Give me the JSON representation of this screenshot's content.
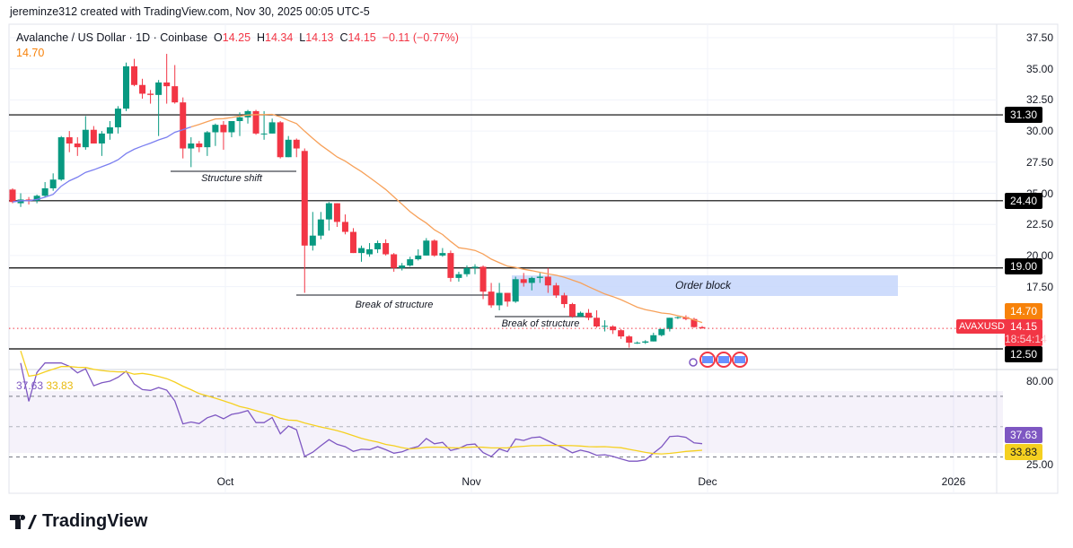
{
  "credit": "jereminze312 created with TradingView.com, Nov 30, 2025 00:05 UTC-5",
  "symbol": {
    "title": "Avalanche / US Dollar · 1D · Coinbase",
    "o_label": "O",
    "o": "14.25",
    "h_label": "H",
    "h": "14.34",
    "l_label": "L",
    "l": "14.13",
    "c_label": "C",
    "c": "14.15",
    "change": "−0.11 (−0.77%)",
    "ticker": "AVAXUSD",
    "countdown": "18:54:14"
  },
  "ma": {
    "value": "14.70",
    "color": "#f7a15a"
  },
  "rsi": {
    "value": "37.63",
    "ma_value": "33.83",
    "color": "#7e57c2",
    "ma_color": "#f5d020"
  },
  "colors": {
    "up": "#089981",
    "down": "#f23645"
  },
  "price_axis": [
    "37.50",
    "35.00",
    "32.50",
    "30.00",
    "27.50",
    "25.00",
    "22.50",
    "20.00",
    "17.50"
  ],
  "rsi_axis": [
    "80.00",
    "25.00"
  ],
  "time_axis": [
    "Oct",
    "Nov",
    "Dec",
    "2026"
  ],
  "levels": [
    "31.30",
    "24.40",
    "19.00",
    "12.50"
  ],
  "annotations": {
    "structure_shift": "Structure shift",
    "bos1": "Break of structure",
    "bos2": "Break of structure",
    "order_block": "Order block"
  },
  "brand": "TradingView",
  "chart_data": {
    "type": "candlestick",
    "start_date": "2025-09-04",
    "ohlc": [
      [
        25.3,
        25.4,
        24.2,
        24.3
      ],
      [
        24.2,
        25.0,
        23.9,
        24.5
      ],
      [
        24.5,
        24.7,
        24.1,
        24.4
      ],
      [
        24.4,
        24.9,
        24.2,
        24.8
      ],
      [
        24.8,
        25.9,
        24.7,
        25.4
      ],
      [
        25.4,
        26.6,
        25.2,
        26.1
      ],
      [
        26.1,
        29.6,
        26.0,
        29.5
      ],
      [
        29.5,
        30.0,
        28.3,
        29.0
      ],
      [
        29.0,
        29.5,
        28.0,
        28.7
      ],
      [
        28.7,
        31.2,
        28.5,
        30.1
      ],
      [
        30.1,
        30.4,
        29.0,
        29.0
      ],
      [
        29.0,
        30.0,
        28.0,
        29.8
      ],
      [
        29.8,
        30.8,
        29.3,
        30.3
      ],
      [
        30.3,
        32.0,
        29.8,
        31.8
      ],
      [
        31.8,
        35.5,
        31.6,
        35.2
      ],
      [
        35.2,
        35.8,
        33.6,
        33.7
      ],
      [
        33.7,
        34.2,
        32.6,
        33.0
      ],
      [
        33.0,
        33.3,
        32.2,
        32.9
      ],
      [
        32.9,
        34.1,
        29.6,
        33.9
      ],
      [
        33.9,
        36.2,
        32.2,
        33.6
      ],
      [
        33.6,
        35.3,
        32.2,
        32.3
      ],
      [
        32.3,
        32.7,
        27.8,
        28.6
      ],
      [
        28.6,
        29.5,
        27.1,
        29.0
      ],
      [
        29.0,
        29.2,
        28.3,
        28.7
      ],
      [
        28.7,
        30.0,
        28.0,
        29.9
      ],
      [
        29.9,
        30.6,
        28.8,
        30.5
      ],
      [
        30.5,
        30.8,
        28.5,
        29.9
      ],
      [
        29.9,
        30.8,
        29.5,
        30.8
      ],
      [
        30.8,
        31.5,
        29.6,
        31.1
      ],
      [
        31.1,
        31.7,
        30.6,
        31.6
      ],
      [
        31.6,
        31.7,
        29.7,
        29.8
      ],
      [
        29.8,
        31.6,
        29.3,
        29.8
      ],
      [
        29.8,
        31.0,
        29.8,
        30.7
      ],
      [
        30.7,
        30.8,
        27.8,
        27.9
      ],
      [
        27.9,
        29.6,
        27.9,
        29.3
      ],
      [
        29.3,
        29.4,
        27.9,
        28.6
      ],
      [
        28.4,
        28.6,
        17.0,
        20.8
      ],
      [
        20.8,
        23.5,
        20.4,
        21.6
      ],
      [
        21.6,
        23.5,
        21.3,
        22.9
      ],
      [
        22.9,
        24.3,
        22.0,
        24.2
      ],
      [
        24.2,
        24.2,
        22.3,
        22.7
      ],
      [
        22.7,
        23.3,
        21.7,
        21.9
      ],
      [
        21.9,
        22.2,
        20.2,
        20.2
      ],
      [
        20.2,
        20.8,
        19.5,
        20.6
      ],
      [
        20.1,
        21.0,
        19.9,
        20.5
      ],
      [
        20.5,
        21.2,
        20.2,
        21.0
      ],
      [
        21.0,
        21.3,
        20.0,
        20.1
      ],
      [
        20.1,
        20.2,
        18.7,
        19.0
      ],
      [
        19.0,
        19.4,
        18.8,
        19.2
      ],
      [
        19.2,
        19.9,
        19.1,
        19.7
      ],
      [
        19.7,
        20.5,
        19.6,
        20.0
      ],
      [
        20.0,
        21.4,
        20.0,
        21.2
      ],
      [
        21.2,
        21.3,
        19.9,
        20.0
      ],
      [
        20.0,
        20.6,
        19.9,
        20.2
      ],
      [
        20.2,
        20.4,
        17.9,
        18.2
      ],
      [
        18.2,
        18.7,
        17.9,
        18.5
      ],
      [
        18.5,
        19.2,
        18.3,
        19.0
      ],
      [
        19.0,
        19.3,
        18.5,
        19.1
      ],
      [
        19.1,
        19.2,
        16.5,
        17.1
      ],
      [
        17.1,
        17.8,
        15.8,
        16.0
      ],
      [
        16.0,
        17.8,
        15.6,
        17.0
      ],
      [
        17.0,
        17.0,
        15.9,
        16.3
      ],
      [
        16.3,
        18.3,
        16.2,
        18.1
      ],
      [
        18.1,
        18.6,
        17.5,
        17.8
      ],
      [
        17.8,
        18.3,
        17.2,
        18.2
      ],
      [
        18.2,
        18.6,
        17.8,
        18.3
      ],
      [
        18.3,
        19.0,
        17.0,
        17.6
      ],
      [
        17.6,
        17.8,
        16.6,
        16.8
      ],
      [
        16.8,
        17.0,
        15.8,
        16.1
      ],
      [
        16.1,
        16.2,
        15.0,
        15.1
      ],
      [
        15.1,
        15.5,
        15.1,
        15.4
      ],
      [
        15.4,
        15.7,
        14.8,
        15.0
      ],
      [
        15.0,
        15.6,
        14.2,
        14.3
      ],
      [
        14.3,
        14.8,
        13.9,
        14.35
      ],
      [
        14.3,
        14.4,
        13.7,
        14.0
      ],
      [
        14.0,
        14.1,
        13.3,
        13.5
      ],
      [
        13.5,
        13.6,
        12.6,
        13.0
      ],
      [
        13.0,
        13.1,
        12.9,
        13.0
      ],
      [
        13.0,
        13.2,
        12.9,
        13.1
      ],
      [
        13.1,
        13.8,
        13.1,
        13.6
      ],
      [
        13.6,
        14.0,
        13.5,
        14.1
      ],
      [
        14.1,
        15.0,
        13.9,
        15.0
      ],
      [
        15.0,
        15.1,
        14.9,
        15.05
      ],
      [
        15.05,
        15.2,
        14.8,
        14.9
      ],
      [
        14.9,
        15.0,
        14.2,
        14.25
      ],
      [
        14.25,
        14.34,
        14.13,
        14.15
      ]
    ]
  }
}
